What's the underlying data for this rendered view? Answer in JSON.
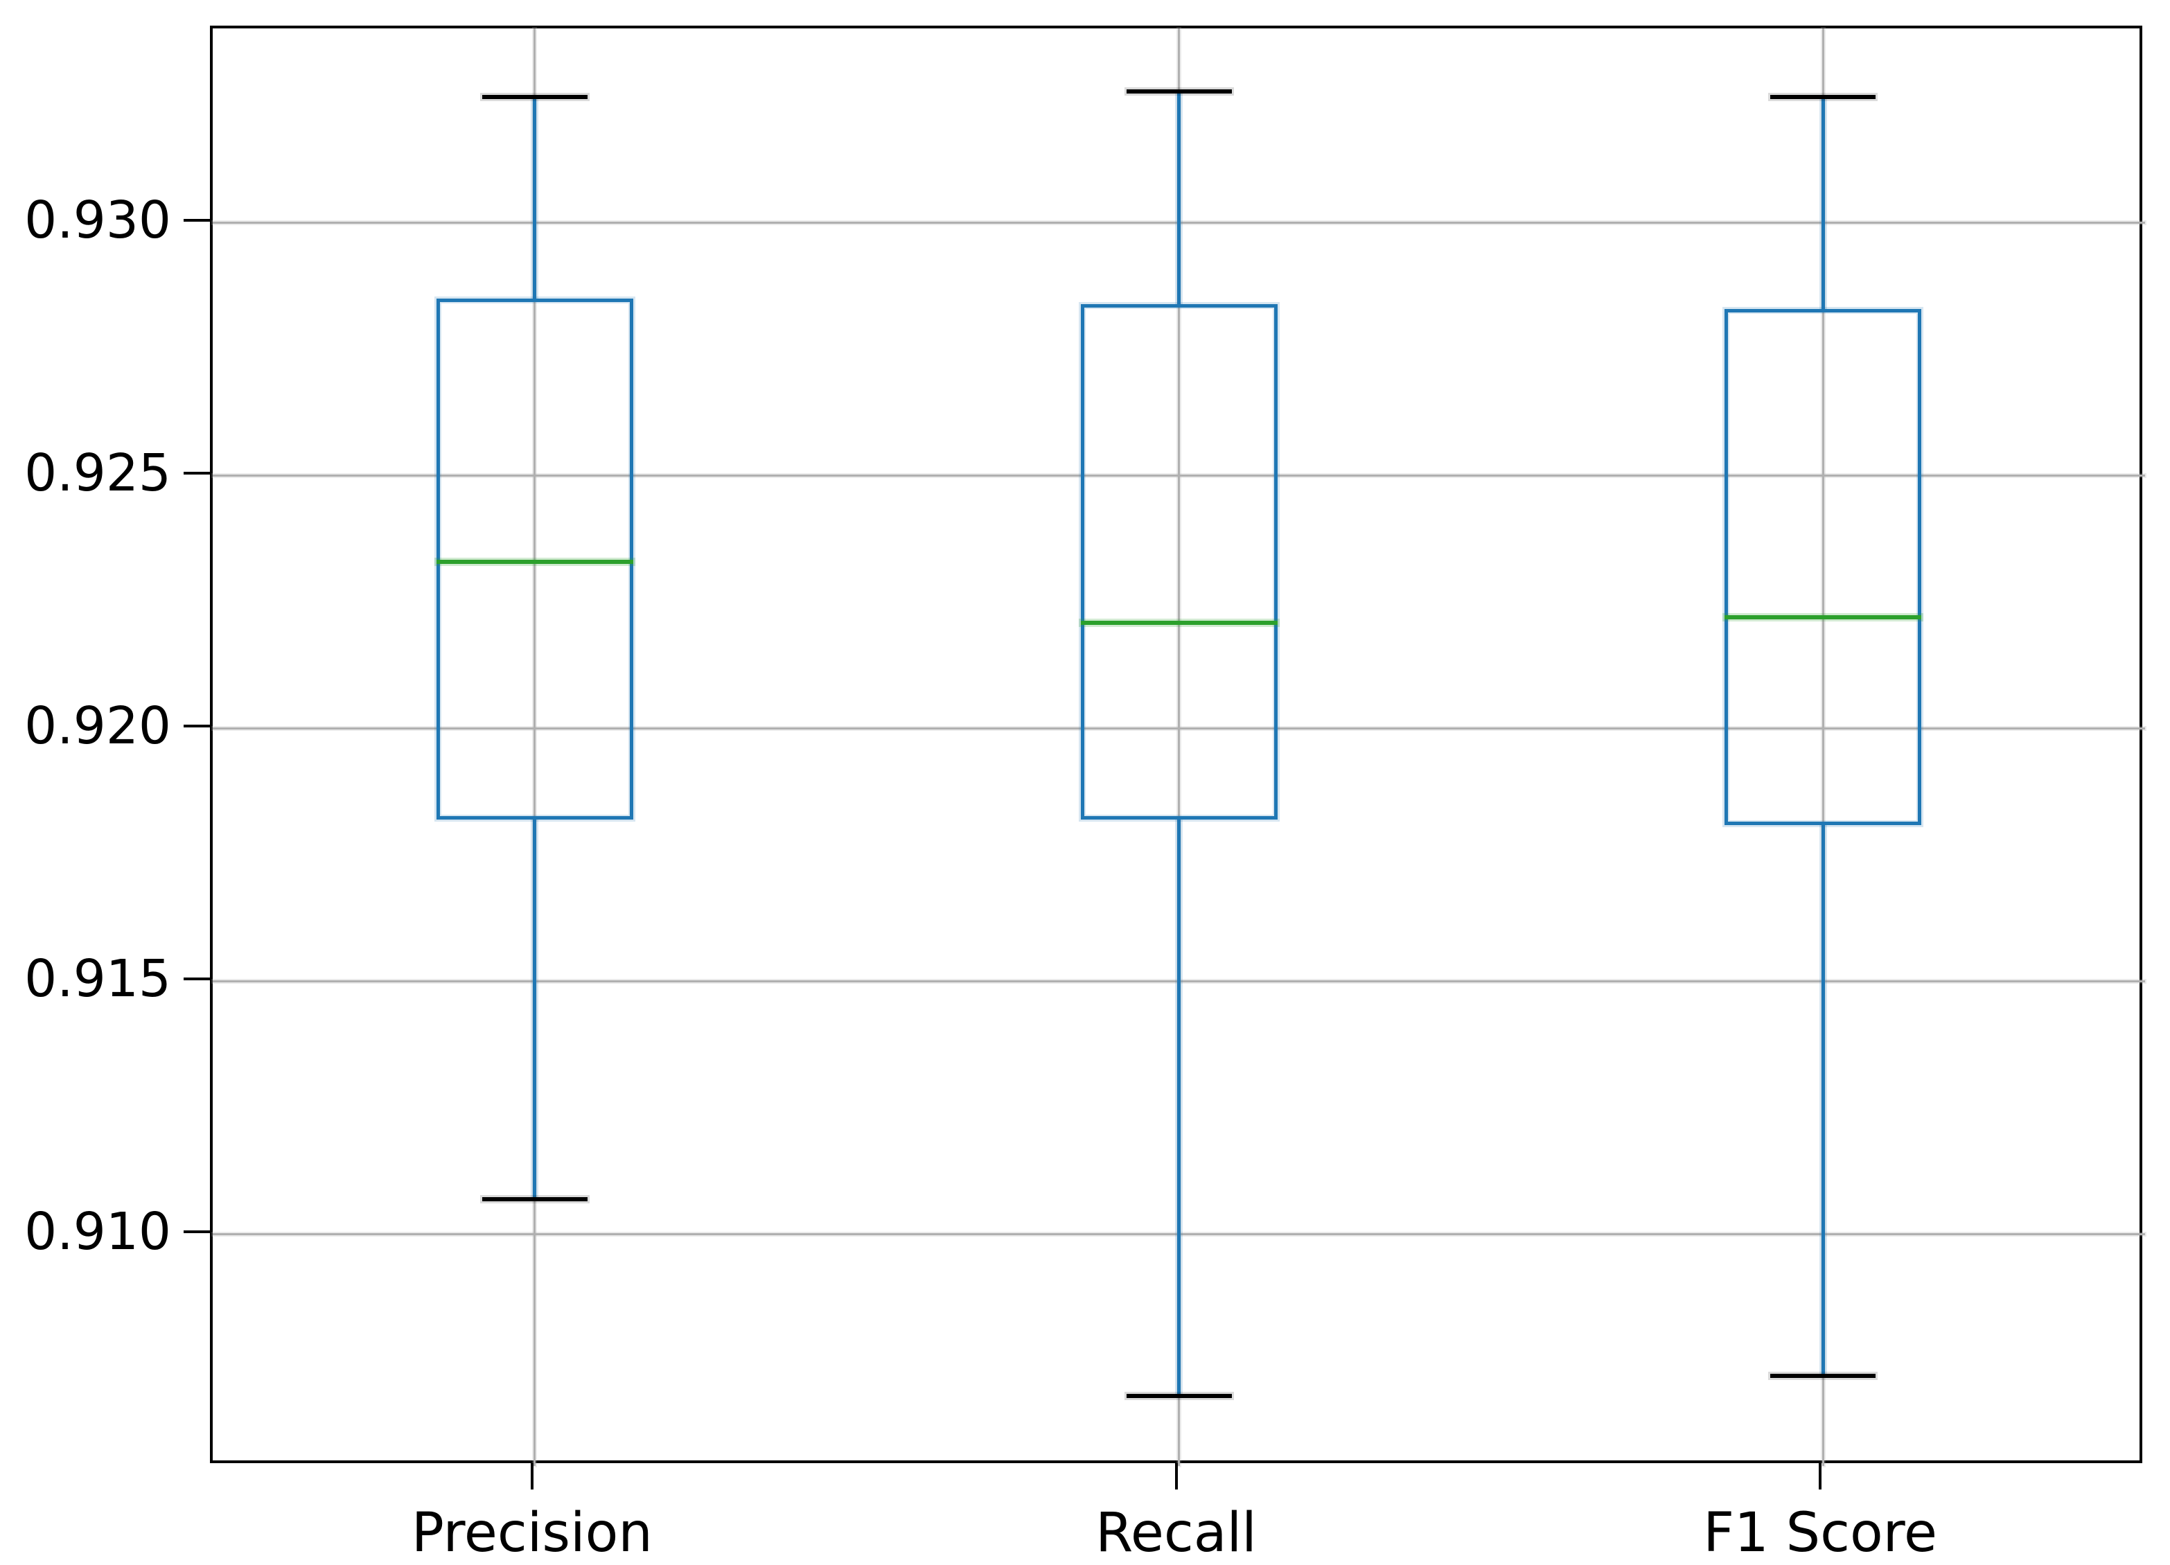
{
  "figure": {
    "background": "#ffffff"
  },
  "chart_data": {
    "type": "boxplot",
    "title": "",
    "xlabel": "",
    "ylabel": "",
    "categories": [
      "Precision",
      "Recall",
      "F1 Score"
    ],
    "series": [
      {
        "name": "Precision",
        "whisker_low": 0.9107,
        "q1": 0.9182,
        "median": 0.9233,
        "q3": 0.9285,
        "whisker_high": 0.9325
      },
      {
        "name": "Recall",
        "whisker_low": 0.9068,
        "q1": 0.9182,
        "median": 0.9221,
        "q3": 0.9284,
        "whisker_high": 0.9326
      },
      {
        "name": "F1 Score",
        "whisker_low": 0.9072,
        "q1": 0.9181,
        "median": 0.9222,
        "q3": 0.9283,
        "whisker_high": 0.9325
      }
    ],
    "yticks": [
      0.91,
      0.915,
      0.92,
      0.925,
      0.93
    ],
    "ytick_labels": [
      "0.910",
      "0.915",
      "0.920",
      "0.925",
      "0.930"
    ],
    "ylim": [
      0.90542,
      0.93385
    ],
    "xlim": [
      0.5,
      3.5
    ],
    "positions": [
      1,
      2,
      3
    ],
    "grid": true,
    "legend": false,
    "colors": {
      "box": "#1f77b4",
      "whisker": "#1f77b4",
      "cap": "#000000",
      "median": "#2ca02c",
      "grid": "#b0b0b0",
      "spine": "#000000",
      "tick_label": "#000000"
    }
  }
}
